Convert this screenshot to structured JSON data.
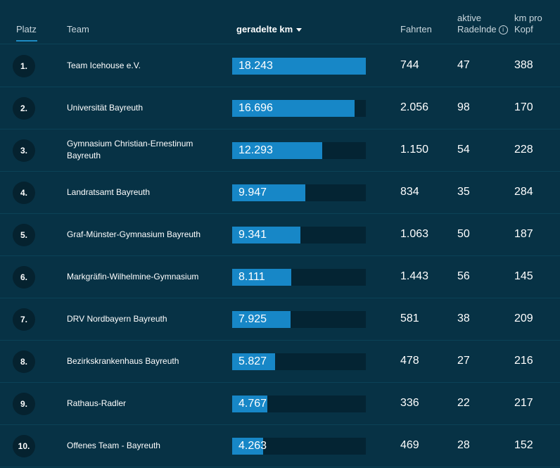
{
  "header": {
    "platz": "Platz",
    "team": "Team",
    "km": "geradelte km",
    "fahrten": "Fahrten",
    "aktive_1": "aktive",
    "aktive_2": "Radelnde",
    "info_icon": "i",
    "kmpro_1": "km pro",
    "kmpro_2": "Kopf"
  },
  "colors": {
    "background": "#073245",
    "bar": "#1787c7",
    "track": "#042433",
    "rank_badge": "#05222f"
  },
  "rows": [
    {
      "rank": "1.",
      "team": "Team Icehouse e.V.",
      "km": "18.243",
      "km_value": 18243,
      "fahrten": "744",
      "aktive": "47",
      "kmpro": "388"
    },
    {
      "rank": "2.",
      "team": "Universität Bayreuth",
      "km": "16.696",
      "km_value": 16696,
      "fahrten": "2.056",
      "aktive": "98",
      "kmpro": "170"
    },
    {
      "rank": "3.",
      "team": "Gymnasium Christian-Ernestinum Bayreuth",
      "km": "12.293",
      "km_value": 12293,
      "fahrten": "1.150",
      "aktive": "54",
      "kmpro": "228"
    },
    {
      "rank": "4.",
      "team": "Landratsamt Bayreuth",
      "km": "9.947",
      "km_value": 9947,
      "fahrten": "834",
      "aktive": "35",
      "kmpro": "284"
    },
    {
      "rank": "5.",
      "team": "Graf-Münster-Gymnasium Bayreuth",
      "km": "9.341",
      "km_value": 9341,
      "fahrten": "1.063",
      "aktive": "50",
      "kmpro": "187"
    },
    {
      "rank": "6.",
      "team": "Markgräfin-Wilhelmine-Gymnasium",
      "km": "8.111",
      "km_value": 8111,
      "fahrten": "1.443",
      "aktive": "56",
      "kmpro": "145"
    },
    {
      "rank": "7.",
      "team": "DRV Nordbayern Bayreuth",
      "km": "7.925",
      "km_value": 7925,
      "fahrten": "581",
      "aktive": "38",
      "kmpro": "209"
    },
    {
      "rank": "8.",
      "team": "Bezirkskrankenhaus Bayreuth",
      "km": "5.827",
      "km_value": 5827,
      "fahrten": "478",
      "aktive": "27",
      "kmpro": "216"
    },
    {
      "rank": "9.",
      "team": "Rathaus-Radler",
      "km": "4.767",
      "km_value": 4767,
      "fahrten": "336",
      "aktive": "22",
      "kmpro": "217"
    },
    {
      "rank": "10.",
      "team": "Offenes Team - Bayreuth",
      "km": "4.263",
      "km_value": 4263,
      "fahrten": "469",
      "aktive": "28",
      "kmpro": "152"
    }
  ]
}
